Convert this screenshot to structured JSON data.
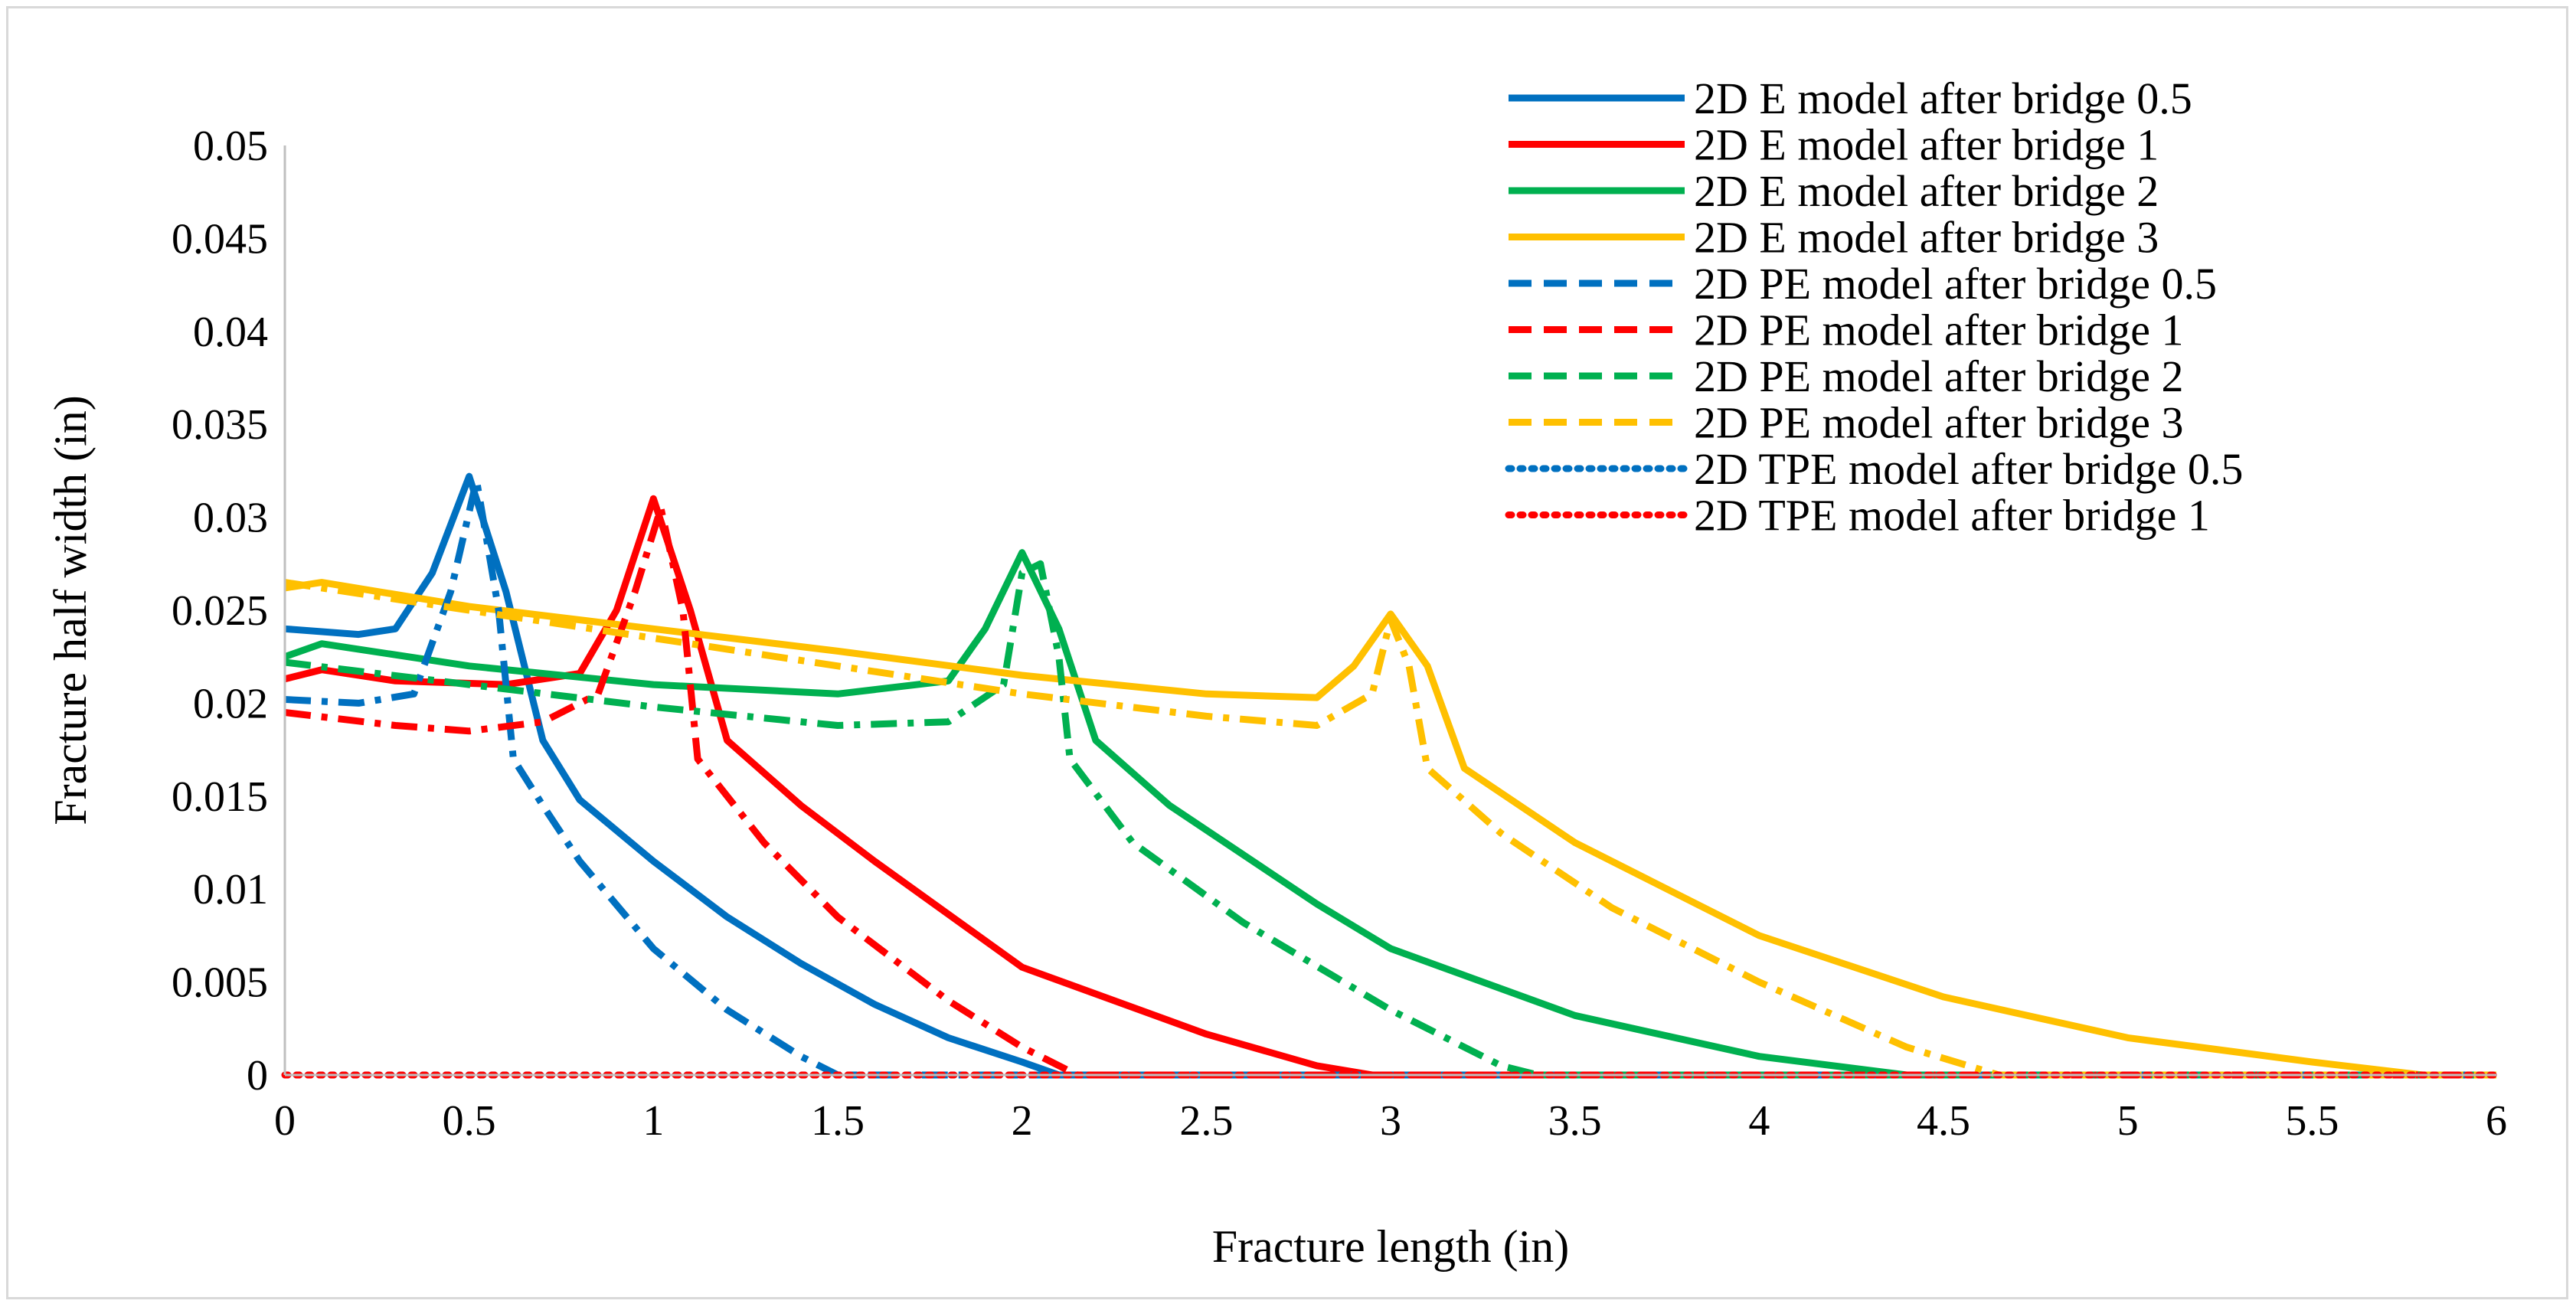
{
  "chart_data": {
    "type": "line",
    "xlabel": "Fracture length (in)",
    "ylabel": "Fracture half width (in)",
    "xlim": [
      0,
      6
    ],
    "ylim": [
      0,
      0.05
    ],
    "x_ticks": [
      "0",
      "0.5",
      "1",
      "1.5",
      "2",
      "2.5",
      "3",
      "3.5",
      "4",
      "4.5",
      "5",
      "5.5",
      "6"
    ],
    "y_ticks": [
      "0",
      "0.005",
      "0.01",
      "0.015",
      "0.02",
      "0.025",
      "0.03",
      "0.035",
      "0.04",
      "0.045",
      "0.05"
    ],
    "grid": false,
    "legend_position": "top-right",
    "series": [
      {
        "name": "2D E model after bridge 0.5",
        "color": "#0070c0",
        "style": "solid",
        "points": [
          [
            0,
            0.024
          ],
          [
            0.2,
            0.0237
          ],
          [
            0.3,
            0.024
          ],
          [
            0.4,
            0.027
          ],
          [
            0.5,
            0.0322
          ],
          [
            0.6,
            0.026
          ],
          [
            0.7,
            0.018
          ],
          [
            0.8,
            0.0148
          ],
          [
            1.0,
            0.0115
          ],
          [
            1.2,
            0.0085
          ],
          [
            1.4,
            0.006
          ],
          [
            1.6,
            0.0038
          ],
          [
            1.8,
            0.002
          ],
          [
            2.0,
            0.0007
          ],
          [
            2.1,
            0
          ],
          [
            6,
            0
          ]
        ]
      },
      {
        "name": "2D E model after bridge 1",
        "color": "#ff0000",
        "style": "solid",
        "points": [
          [
            0,
            0.0213
          ],
          [
            0.1,
            0.0218
          ],
          [
            0.3,
            0.0212
          ],
          [
            0.6,
            0.021
          ],
          [
            0.8,
            0.0216
          ],
          [
            0.9,
            0.025
          ],
          [
            1.0,
            0.031
          ],
          [
            1.1,
            0.025
          ],
          [
            1.2,
            0.018
          ],
          [
            1.4,
            0.0145
          ],
          [
            1.6,
            0.0115
          ],
          [
            2.0,
            0.0058
          ],
          [
            2.5,
            0.0022
          ],
          [
            2.8,
            0.0005
          ],
          [
            2.95,
            0
          ],
          [
            6,
            0
          ]
        ]
      },
      {
        "name": "2D E model after bridge 2",
        "color": "#00b050",
        "style": "solid",
        "points": [
          [
            0,
            0.0225
          ],
          [
            0.1,
            0.0232
          ],
          [
            0.5,
            0.022
          ],
          [
            1.0,
            0.021
          ],
          [
            1.5,
            0.0205
          ],
          [
            1.8,
            0.0212
          ],
          [
            1.9,
            0.024
          ],
          [
            2.0,
            0.0281
          ],
          [
            2.1,
            0.024
          ],
          [
            2.2,
            0.018
          ],
          [
            2.4,
            0.0145
          ],
          [
            2.8,
            0.0092
          ],
          [
            3.0,
            0.0068
          ],
          [
            3.5,
            0.0032
          ],
          [
            4.0,
            0.001
          ],
          [
            4.4,
            0
          ],
          [
            6,
            0
          ]
        ]
      },
      {
        "name": "2D E model after bridge 3",
        "color": "#ffc000",
        "style": "solid",
        "points": [
          [
            0,
            0.0262
          ],
          [
            0.1,
            0.0265
          ],
          [
            0.5,
            0.0252
          ],
          [
            1.0,
            0.024
          ],
          [
            1.5,
            0.0228
          ],
          [
            2.0,
            0.0215
          ],
          [
            2.5,
            0.0205
          ],
          [
            2.8,
            0.0203
          ],
          [
            2.9,
            0.022
          ],
          [
            3.0,
            0.0248
          ],
          [
            3.1,
            0.022
          ],
          [
            3.2,
            0.0165
          ],
          [
            3.5,
            0.0125
          ],
          [
            4.0,
            0.0075
          ],
          [
            4.5,
            0.0042
          ],
          [
            5.0,
            0.002
          ],
          [
            5.5,
            0.0007
          ],
          [
            5.8,
            0
          ],
          [
            6,
            0
          ]
        ]
      },
      {
        "name": "2D PE model after bridge 0.5",
        "color": "#0070c0",
        "style": "dashdot",
        "points": [
          [
            0,
            0.0202
          ],
          [
            0.2,
            0.02
          ],
          [
            0.35,
            0.0205
          ],
          [
            0.45,
            0.026
          ],
          [
            0.52,
            0.032
          ],
          [
            0.58,
            0.025
          ],
          [
            0.62,
            0.017
          ],
          [
            0.7,
            0.0145
          ],
          [
            0.8,
            0.0115
          ],
          [
            1.0,
            0.0068
          ],
          [
            1.2,
            0.0035
          ],
          [
            1.4,
            0.001
          ],
          [
            1.5,
            0
          ],
          [
            6,
            0
          ]
        ]
      },
      {
        "name": "2D PE model after bridge 1",
        "color": "#ff0000",
        "style": "dashdot",
        "points": [
          [
            0,
            0.0195
          ],
          [
            0.3,
            0.0188
          ],
          [
            0.5,
            0.0185
          ],
          [
            0.7,
            0.019
          ],
          [
            0.85,
            0.0205
          ],
          [
            0.95,
            0.026
          ],
          [
            1.02,
            0.0305
          ],
          [
            1.08,
            0.025
          ],
          [
            1.12,
            0.017
          ],
          [
            1.3,
            0.0125
          ],
          [
            1.5,
            0.0085
          ],
          [
            1.8,
            0.004
          ],
          [
            2.0,
            0.0015
          ],
          [
            2.15,
            0
          ],
          [
            6,
            0
          ]
        ]
      },
      {
        "name": "2D PE model after bridge 2",
        "color": "#00b050",
        "style": "dashdot",
        "points": [
          [
            0,
            0.0222
          ],
          [
            0.5,
            0.021
          ],
          [
            1.0,
            0.0198
          ],
          [
            1.5,
            0.0188
          ],
          [
            1.8,
            0.019
          ],
          [
            1.95,
            0.021
          ],
          [
            2.0,
            0.027
          ],
          [
            2.05,
            0.0275
          ],
          [
            2.1,
            0.0225
          ],
          [
            2.13,
            0.017
          ],
          [
            2.3,
            0.0125
          ],
          [
            2.6,
            0.0082
          ],
          [
            3.0,
            0.0035
          ],
          [
            3.3,
            0.0005
          ],
          [
            3.4,
            0
          ],
          [
            6,
            0
          ]
        ]
      },
      {
        "name": "2D PE model after bridge 3",
        "color": "#ffc000",
        "style": "dashdot",
        "points": [
          [
            0,
            0.0265
          ],
          [
            0.1,
            0.0262
          ],
          [
            0.5,
            0.025
          ],
          [
            1.0,
            0.0235
          ],
          [
            1.5,
            0.022
          ],
          [
            2.0,
            0.0205
          ],
          [
            2.5,
            0.0193
          ],
          [
            2.8,
            0.0188
          ],
          [
            2.95,
            0.0205
          ],
          [
            3.0,
            0.0245
          ],
          [
            3.05,
            0.022
          ],
          [
            3.1,
            0.0165
          ],
          [
            3.3,
            0.013
          ],
          [
            3.6,
            0.009
          ],
          [
            4.0,
            0.005
          ],
          [
            4.4,
            0.0015
          ],
          [
            4.65,
            0
          ],
          [
            6,
            0
          ]
        ]
      },
      {
        "name": "2D TPE model after bridge 0.5",
        "color": "#0070c0",
        "style": "dotted",
        "points": [
          [
            0,
            0
          ],
          [
            6,
            0
          ]
        ]
      },
      {
        "name": "2D TPE model after bridge 1",
        "color": "#ff0000",
        "style": "dotted",
        "points": [
          [
            0,
            0
          ],
          [
            6,
            0
          ]
        ]
      }
    ]
  }
}
